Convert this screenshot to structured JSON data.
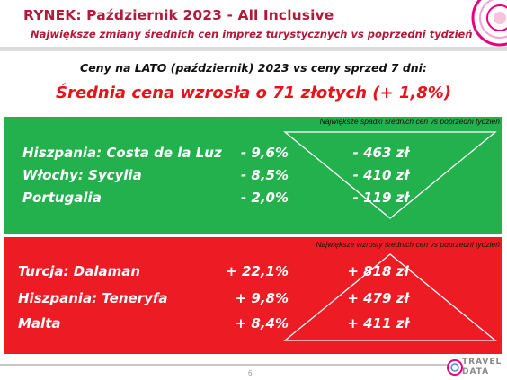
{
  "header": {
    "title": "RYNEK: Październik 2023 - All Inclusive",
    "subtitle": "Największe zmiany średnich cen imprez turystycznych vs poprzedni tydzień"
  },
  "summary": {
    "compare_line": "Ceny na LATO (październik) 2023 vs ceny sprzed 7 dni:",
    "headline": "Średnia cena wzrosła o 71 złotych (+ 1,8%)"
  },
  "decreases": {
    "caption": "Największe spadki średnich cen vs poprzedni tydzień",
    "rows": [
      {
        "name": "Hiszpania: Costa de la Luz",
        "pct": "- 9,6%",
        "amount": "- 463 zł"
      },
      {
        "name": "Włochy: Sycylia",
        "pct": "- 8,5%",
        "amount": "- 410 zł"
      },
      {
        "name": "Portugalia",
        "pct": "- 2,0%",
        "amount": "- 119 zł"
      }
    ]
  },
  "increases": {
    "caption": "Największe wzrosty średnich cen vs poprzedni tydzień",
    "rows": [
      {
        "name": "Turcja: Dalaman",
        "pct": "+ 22,1%",
        "amount": "+ 818 zł"
      },
      {
        "name": "Hiszpania: Teneryfa",
        "pct": "+ 9,8%",
        "amount": "+ 479 zł"
      },
      {
        "name": "Malta",
        "pct": "+ 8,4%",
        "amount": "+ 411 zł"
      }
    ]
  },
  "footer": {
    "page_number": "6",
    "logo_top": "TRAVEL",
    "logo_bottom": "DATA"
  },
  "colors": {
    "accent": "#b21a3a",
    "headline": "#e8121b",
    "green_panel": "#22b14c",
    "red_panel": "#ed1c24"
  }
}
